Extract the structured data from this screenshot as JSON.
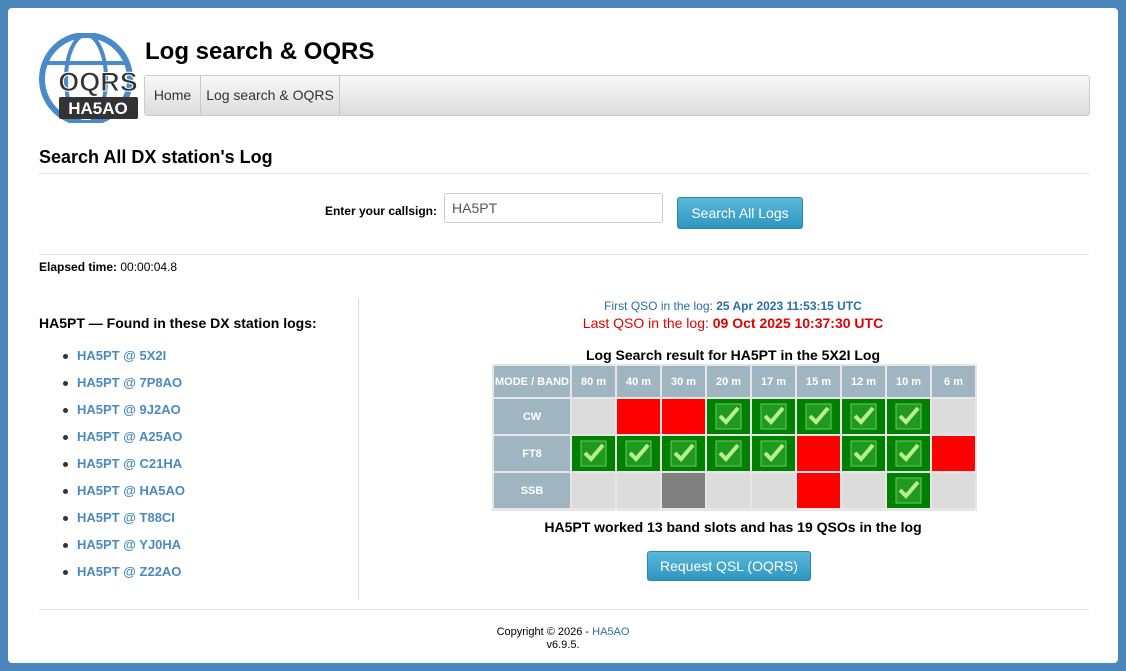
{
  "logo": {
    "text": "OQRS",
    "call": "HA5AO"
  },
  "header": {
    "title": "Log search & OQRS",
    "nav": [
      "Home",
      "Log search & OQRS"
    ]
  },
  "search": {
    "heading": "Search All DX station's Log",
    "label": "Enter your callsign:",
    "input": "HA5PT",
    "button": "Search All Logs"
  },
  "elapsed": {
    "label": "Elapsed time:",
    "value": "00:00:04.8"
  },
  "found": {
    "heading": "HA5PT — Found in these DX station logs:",
    "logs": [
      "HA5PT @ 5X2I",
      "HA5PT @ 7P8AO",
      "HA5PT @ 9J2AO",
      "HA5PT @ A25AO",
      "HA5PT @ C21HA",
      "HA5PT @ HA5AO",
      "HA5PT @ T88CI",
      "HA5PT @ YJ0HA",
      "HA5PT @ Z22AO"
    ]
  },
  "result": {
    "first_label": "First QSO in the log:",
    "first_value": "25 Apr 2023 11:53:15 UTC",
    "last_label": "Last QSO in the log:",
    "last_value": "09 Oct 2025 10:37:30 UTC",
    "table_title": "Log Search result for HA5PT in the 5X2I Log",
    "header": [
      "MODE / BAND",
      "80 m",
      "40 m",
      "30 m",
      "20 m",
      "17 m",
      "15 m",
      "12 m",
      "10 m",
      "6 m"
    ],
    "rows": [
      {
        "mode": "CW",
        "colors": [
          "#dcdcdc",
          "#ff0000",
          "#ff0000",
          "#008000",
          "#008000",
          "#008000",
          "#008000",
          "#008000",
          "#dcdcdc"
        ]
      },
      {
        "mode": "FT8",
        "colors": [
          "#008000",
          "#008000",
          "#008000",
          "#008000",
          "#008000",
          "#ff0000",
          "#008000",
          "#008000",
          "#ff0000"
        ]
      },
      {
        "mode": "SSB",
        "colors": [
          "#dcdcdc",
          "#dcdcdc",
          "#808080",
          "#dcdcdc",
          "#dcdcdc",
          "#ff0000",
          "#dcdcdc",
          "#008000",
          "#dcdcdc"
        ]
      }
    ],
    "summary": "HA5PT worked 13 band slots and has 19 QSOs in the log",
    "button": "Request QSL (OQRS)"
  },
  "footer": {
    "copyright": "Copyright © 2026 - ",
    "link": "HA5AO",
    "version": "v6.9.5."
  }
}
